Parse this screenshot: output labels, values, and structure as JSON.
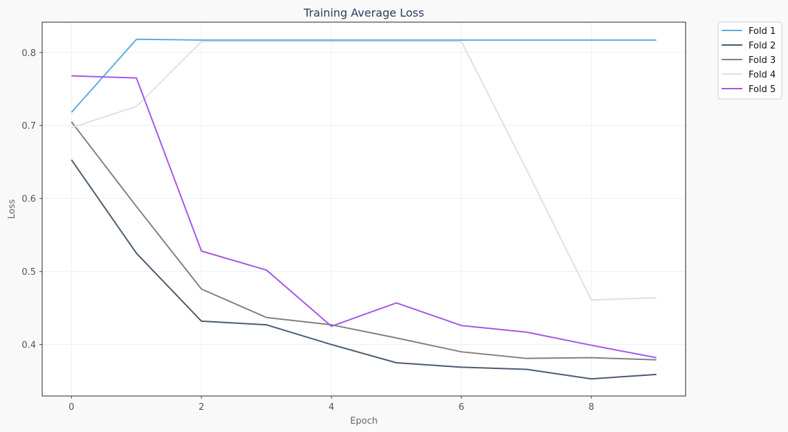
{
  "chart_data": {
    "type": "line",
    "title": "Training Average Loss",
    "xlabel": "Epoch",
    "ylabel": "Loss",
    "x": [
      0,
      1,
      2,
      3,
      4,
      5,
      6,
      7,
      8,
      9
    ],
    "xlim": [
      -0.45,
      9.45
    ],
    "ylim": [
      0.3295,
      0.8415
    ],
    "xticks": [
      0,
      2,
      4,
      6,
      8
    ],
    "yticks": [
      0.4,
      0.5,
      0.6,
      0.7,
      0.8
    ],
    "ytick_labels": [
      "0.4",
      "0.5",
      "0.6",
      "0.7",
      "0.8"
    ],
    "grid": true,
    "legend_position": "outside-top-right",
    "series": [
      {
        "name": "Fold 1",
        "color": "#5DADE2",
        "values": [
          0.718,
          0.818,
          0.817,
          0.817,
          0.817,
          0.817,
          0.817,
          0.817,
          0.817,
          0.817
        ]
      },
      {
        "name": "Fold 2",
        "color": "#4A5A6E",
        "values": [
          0.653,
          0.525,
          0.432,
          0.427,
          0.4,
          0.375,
          0.369,
          0.366,
          0.353,
          0.359
        ]
      },
      {
        "name": "Fold 3",
        "color": "#808080",
        "values": [
          0.705,
          0.589,
          0.476,
          0.437,
          0.427,
          0.409,
          0.39,
          0.381,
          0.382,
          0.379
        ]
      },
      {
        "name": "Fold 4",
        "color": "#E0E0E0",
        "values": [
          0.697,
          0.726,
          0.815,
          0.815,
          0.815,
          0.815,
          0.815,
          0.64,
          0.461,
          0.464
        ]
      },
      {
        "name": "Fold 5",
        "color": "#A855E8",
        "values": [
          0.768,
          0.765,
          0.528,
          0.502,
          0.425,
          0.457,
          0.426,
          0.417,
          0.399,
          0.382
        ]
      }
    ]
  }
}
